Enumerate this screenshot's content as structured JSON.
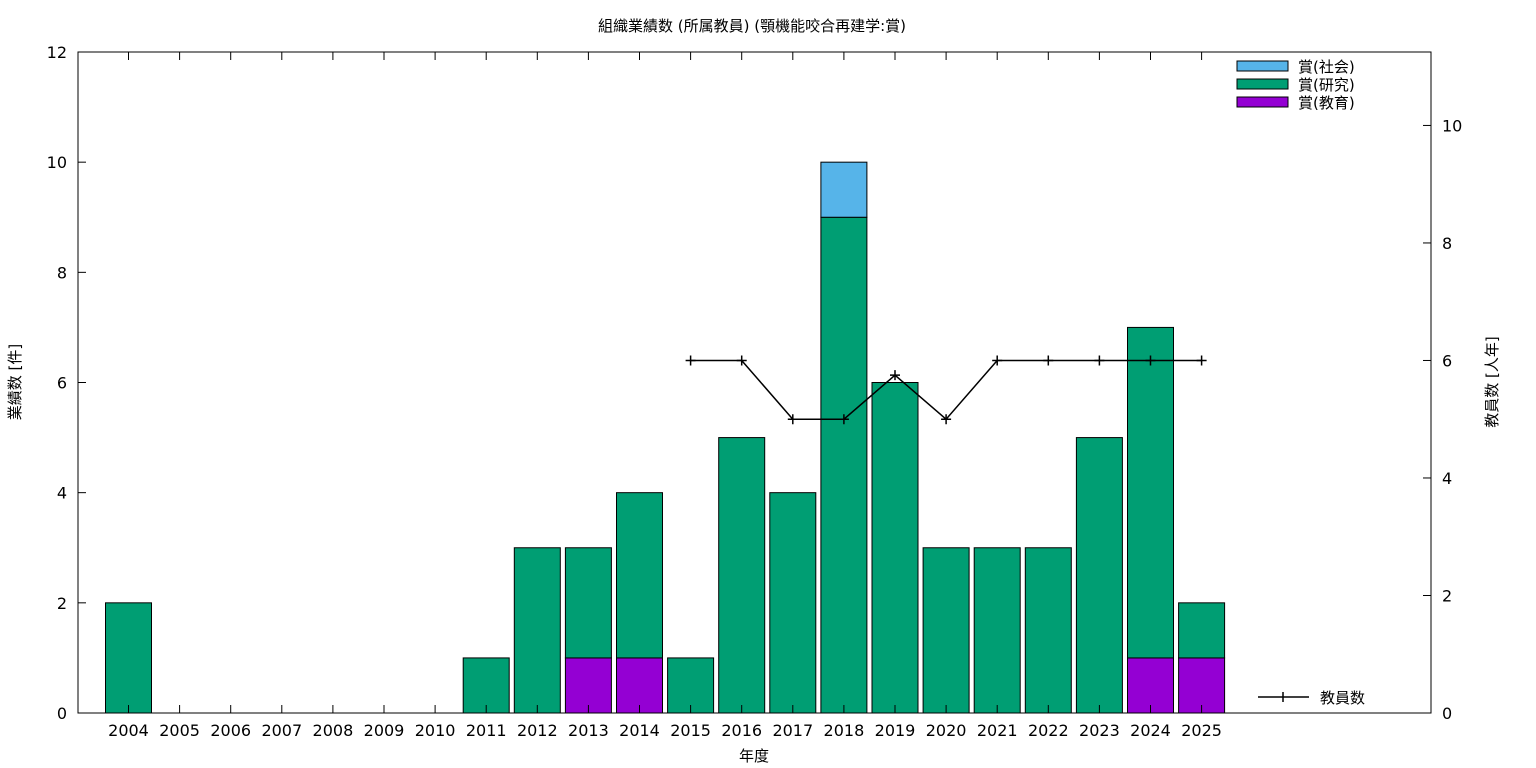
{
  "chart_data": {
    "type": "bar",
    "title": "組織業績数 (所属教員) (顎機能咬合再建学:賞)",
    "xlabel": "年度",
    "ylabel": "業績数 [件]",
    "y2label": "教員数 [人年]",
    "categories": [
      "2004",
      "2005",
      "2006",
      "2007",
      "2008",
      "2009",
      "2010",
      "2011",
      "2012",
      "2013",
      "2014",
      "2015",
      "2016",
      "2017",
      "2018",
      "2019",
      "2020",
      "2021",
      "2022",
      "2023",
      "2024",
      "2025"
    ],
    "stacked": true,
    "ylim": [
      0,
      12
    ],
    "yticks": [
      "0",
      "2",
      "4",
      "6",
      "8",
      "10",
      "12"
    ],
    "y2lim": [
      0,
      11.25
    ],
    "y2ticks": [
      "0",
      "2",
      "4",
      "6",
      "8",
      "10"
    ],
    "series": [
      {
        "name": "賞(教育)",
        "color": "#9400d3",
        "values": [
          0,
          0,
          0,
          0,
          0,
          0,
          0,
          0,
          0,
          1,
          1,
          0,
          0,
          0,
          0,
          0,
          0,
          0,
          0,
          0,
          1,
          1
        ]
      },
      {
        "name": "賞(研究)",
        "color": "#009e73",
        "values": [
          2,
          0,
          0,
          0,
          0,
          0,
          0,
          1,
          3,
          2,
          3,
          1,
          5,
          4,
          9,
          6,
          3,
          3,
          3,
          5,
          6,
          1
        ]
      },
      {
        "name": "賞(社会)",
        "color": "#56b4e9",
        "values": [
          0,
          0,
          0,
          0,
          0,
          0,
          0,
          0,
          0,
          0,
          0,
          0,
          0,
          0,
          1,
          0,
          0,
          0,
          0,
          0,
          0,
          0
        ]
      }
    ],
    "line_series": {
      "name": "教員数",
      "color": "#000000",
      "axis": "y2",
      "values": [
        null,
        null,
        null,
        null,
        null,
        null,
        null,
        null,
        null,
        null,
        null,
        6,
        6,
        5,
        5,
        5.75,
        5,
        6,
        6,
        6,
        6,
        6
      ]
    },
    "legend": {
      "position": "top-right",
      "order": [
        "賞(社会)",
        "賞(研究)",
        "賞(教育)"
      ],
      "line_position": "bottom-right"
    },
    "grid": false
  }
}
